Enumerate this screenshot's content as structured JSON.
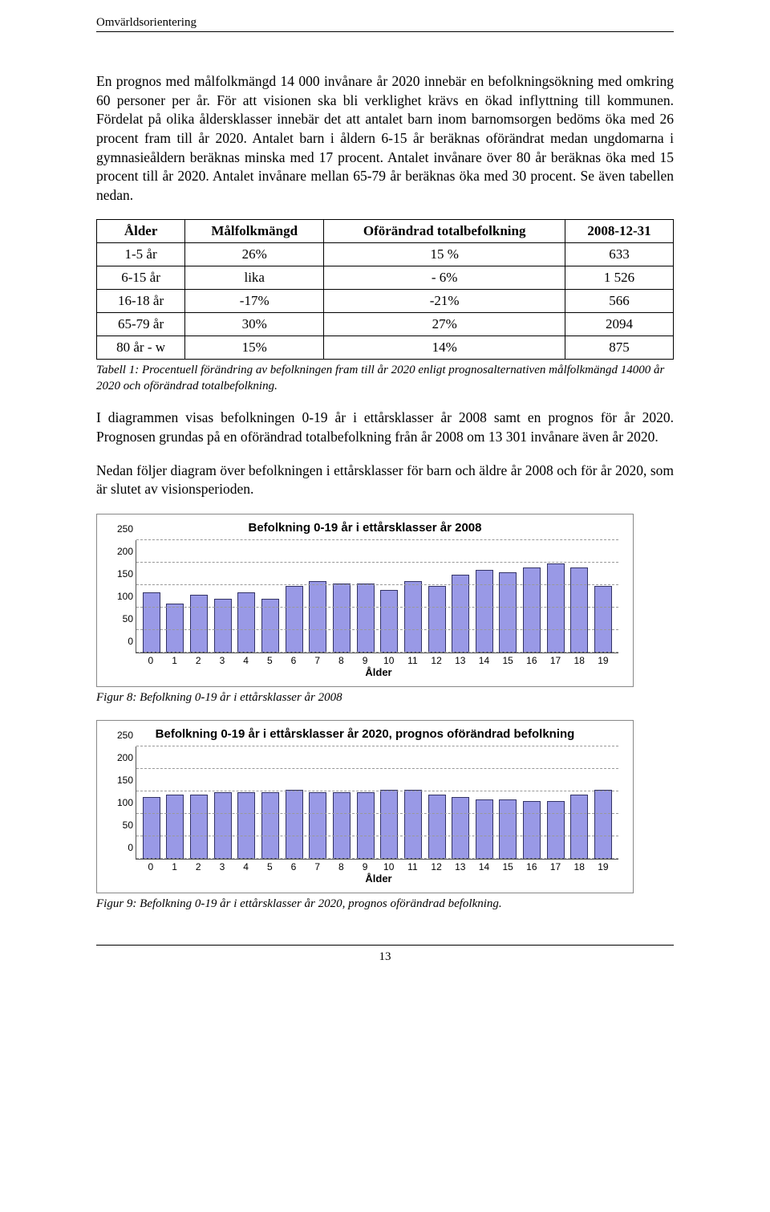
{
  "header": {
    "section": "Omvärldsorientering"
  },
  "paragraphs": {
    "p1": "En prognos med målfolkmängd 14 000 invånare år 2020 innebär en befolkningsökning med omkring 60 personer per år. För att visionen ska bli verklighet krävs en ökad inflyttning till kommunen. Fördelat på olika åldersklasser innebär det att antalet barn inom barnomsorgen bedöms öka med 26 procent fram till år 2020. Antalet barn i åldern 6-15 år beräknas oförändrat medan ungdomarna i gymnasieåldern beräknas minska med 17 procent. Antalet invånare över 80 år beräknas öka med 15 procent till år 2020. Antalet invånare mellan 65-79 år beräknas öka med 30 procent. Se även tabellen nedan.",
    "table_caption": "Tabell 1: Procentuell förändring av befolkningen fram till år 2020 enligt prognosalternativen målfolkmängd 14000 år 2020 och oförändrad totalbefolkning.",
    "p2": "I diagrammen visas befolkningen 0-19 år i ettårsklasser år 2008 samt en prognos för år 2020. Prognosen grundas på en oförändrad totalbefolkning från år 2008 om 13 301 invånare även år 2020.",
    "p3": "Nedan följer diagram över befolkningen i ettårsklasser för barn och äldre år 2008 och för år 2020, som är slutet av visionsperioden.",
    "fig8_caption": "Figur 8: Befolkning 0-19 år i ettårsklasser år 2008",
    "fig9_caption": "Figur 9: Befolkning 0-19 år i ettårsklasser år 2020, prognos oförändrad befolkning."
  },
  "table": {
    "headers": [
      "Ålder",
      "Målfolkmängd",
      "Oförändrad totalbefolkning",
      "2008-12-31"
    ],
    "rows": [
      [
        "1-5 år",
        "26%",
        "15 %",
        "633"
      ],
      [
        "6-15 år",
        "lika",
        "- 6%",
        "1 526"
      ],
      [
        "16-18 år",
        "-17%",
        "-21%",
        "566"
      ],
      [
        "65-79 år",
        "30%",
        "27%",
        "2094"
      ],
      [
        "80 år - w",
        "15%",
        "14%",
        "875"
      ]
    ]
  },
  "chart1": {
    "title": "Befolkning 0-19 år i ettårsklasser år 2008",
    "type": "bar",
    "bar_fill": "#9999e6",
    "bar_border": "#333366",
    "grid_color": "#999999",
    "background_color": "#ffffff",
    "yticks": [
      0,
      50,
      100,
      150,
      200,
      250
    ],
    "ymax": 250,
    "categories": [
      0,
      1,
      2,
      3,
      4,
      5,
      6,
      7,
      8,
      9,
      10,
      11,
      12,
      13,
      14,
      15,
      16,
      17,
      18,
      19
    ],
    "values": [
      130,
      105,
      125,
      115,
      130,
      115,
      145,
      155,
      150,
      150,
      135,
      155,
      145,
      170,
      180,
      175,
      185,
      195,
      185,
      145
    ],
    "xlabel": "Ålder",
    "title_fontsize": 15,
    "label_fontsize": 12
  },
  "chart2": {
    "title": "Befolkning 0-19 år i ettårsklasser år 2020, prognos oförändrad befolkning",
    "type": "bar",
    "bar_fill": "#9999e6",
    "bar_border": "#333366",
    "grid_color": "#999999",
    "background_color": "#ffffff",
    "yticks": [
      0,
      50,
      100,
      150,
      200,
      250
    ],
    "ymax": 250,
    "categories": [
      0,
      1,
      2,
      3,
      4,
      5,
      6,
      7,
      8,
      9,
      10,
      11,
      12,
      13,
      14,
      15,
      16,
      17,
      18,
      19
    ],
    "values": [
      135,
      140,
      140,
      145,
      145,
      145,
      150,
      145,
      145,
      145,
      150,
      150,
      140,
      135,
      130,
      130,
      125,
      125,
      140,
      150
    ],
    "xlabel": "Ålder",
    "title_fontsize": 15,
    "label_fontsize": 12
  },
  "footer": {
    "page_number": "13"
  }
}
